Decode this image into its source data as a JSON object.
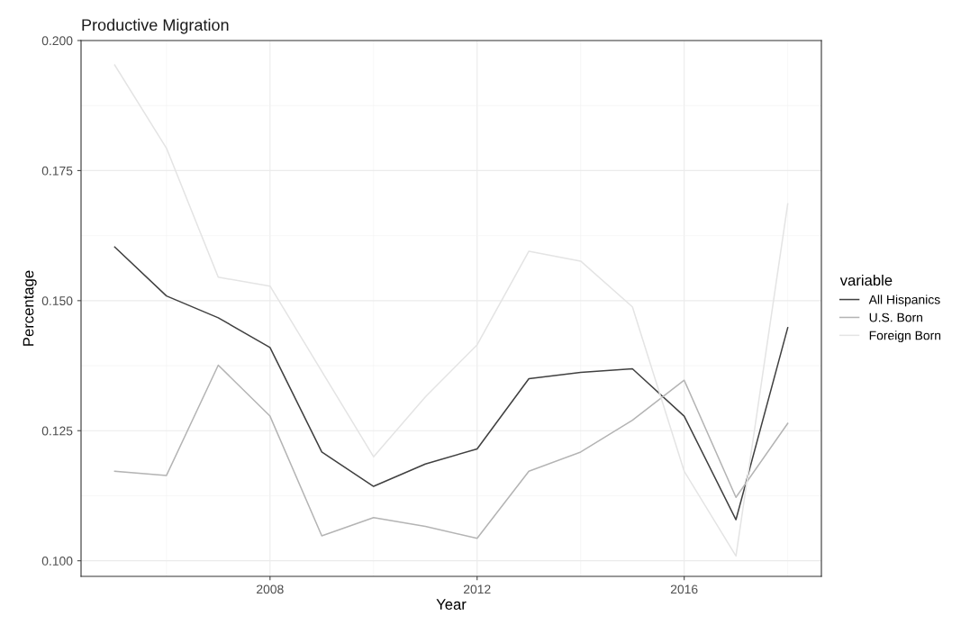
{
  "chart_data": {
    "type": "line",
    "title": "Productive Migration",
    "xlabel": "Year",
    "ylabel": "Percentage",
    "legend_title": "variable",
    "x": [
      2005,
      2006,
      2007,
      2008,
      2009,
      2010,
      2011,
      2012,
      2013,
      2014,
      2015,
      2016,
      2017,
      2018
    ],
    "series": [
      {
        "name": "All Hispanics",
        "color": "#404040",
        "values": [
          0.1603,
          0.1509,
          0.1467,
          0.141,
          0.1209,
          0.1143,
          0.1186,
          0.1215,
          0.135,
          0.1362,
          0.1369,
          0.1278,
          0.1079,
          0.1448
        ]
      },
      {
        "name": "U.S. Born",
        "color": "#b4b4b4",
        "values": [
          0.1172,
          0.1164,
          0.1376,
          0.1278,
          0.1048,
          0.1083,
          0.1066,
          0.1043,
          0.1172,
          0.1209,
          0.127,
          0.1347,
          0.1122,
          0.1264
        ]
      },
      {
        "name": "Foreign Born",
        "color": "#e4e4e4",
        "values": [
          0.1953,
          0.1793,
          0.1545,
          0.1528,
          0.1364,
          0.12,
          0.1315,
          0.1415,
          0.1595,
          0.1576,
          0.1488,
          0.1172,
          0.1009,
          0.1686
        ]
      }
    ],
    "xlim": [
      2004.35,
      2018.65
    ],
    "xticks": [
      2008,
      2012,
      2016
    ],
    "ylim": [
      0.097,
      0.2
    ],
    "yticks": [
      {
        "value": 0.1,
        "label": "0.100"
      },
      {
        "value": 0.125,
        "label": "0.125"
      },
      {
        "value": 0.15,
        "label": "0.150"
      },
      {
        "value": 0.175,
        "label": "0.175"
      },
      {
        "value": 0.2,
        "label": "0.200"
      }
    ],
    "grid": true,
    "legend": "right",
    "marker": "none",
    "line_style": "solid"
  }
}
